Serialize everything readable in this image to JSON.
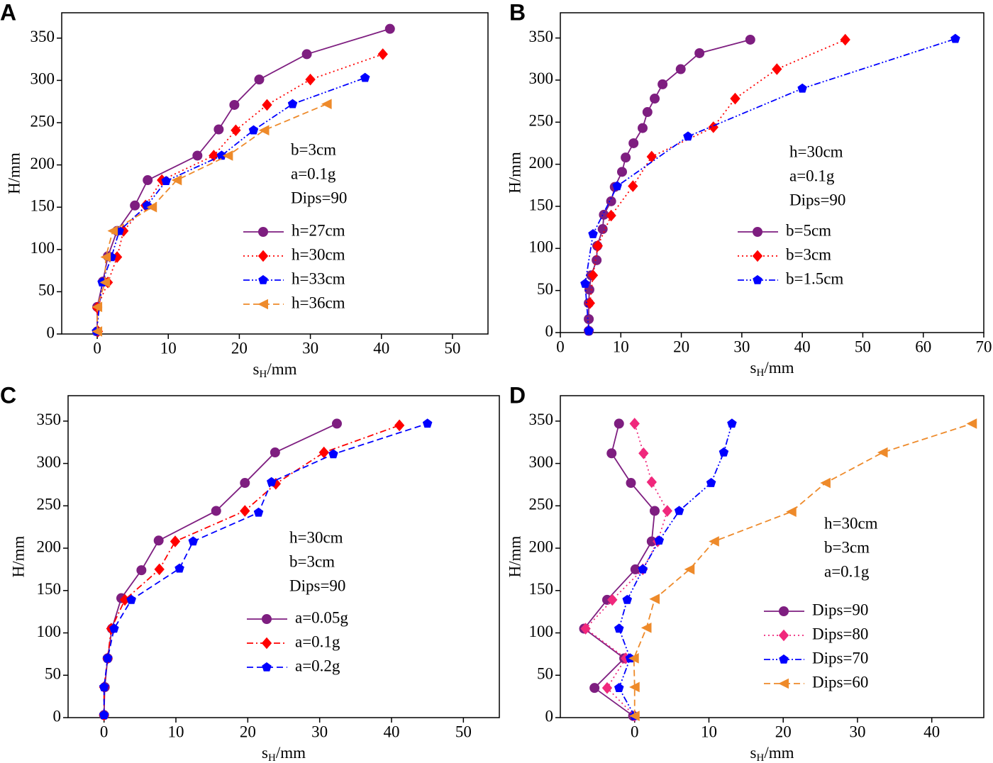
{
  "chart_data": [
    {
      "type": "line",
      "panel_label": "A",
      "xlabel": [
        "s",
        "H",
        "/mm"
      ],
      "ylabel": "H/mm",
      "xlim": [
        -5,
        55
      ],
      "ylim": [
        0,
        380
      ],
      "xticks": [
        0,
        10,
        20,
        30,
        40,
        50
      ],
      "yticks": [
        0,
        50,
        100,
        150,
        200,
        250,
        300,
        350
      ],
      "annotations": [
        "b=3cm",
        "a=0.1g",
        "Dips=90"
      ],
      "legend": "right",
      "series": [
        {
          "name": "h=27cm",
          "color": "#7e1e80",
          "marker": "circle",
          "linestyle": "solid",
          "x": [
            0,
            0,
            0.8,
            1.5,
            2.8,
            5.3,
            7.1,
            14.1,
            17.1,
            19.3,
            22.8,
            29.5,
            41.2
          ],
          "values": [
            3,
            32,
            62,
            92,
            122,
            152,
            182,
            211,
            242,
            271,
            301,
            331,
            361
          ]
        },
        {
          "name": "h=30cm",
          "color": "#ff0000",
          "marker": "diamond",
          "linestyle": "dotted",
          "x": [
            0.1,
            0,
            1.5,
            2.8,
            3.7,
            6.8,
            9.1,
            16.4,
            19.5,
            23.9,
            30,
            40.2
          ],
          "values": [
            3,
            31,
            61,
            91,
            122,
            152,
            182,
            211,
            241,
            271,
            301,
            331
          ]
        },
        {
          "name": "h=33cm",
          "color": "#0000ff",
          "marker": "pentagon",
          "linestyle": "dashdotdot",
          "x": [
            -0.1,
            0.7,
            2,
            3.1,
            7,
            9.7,
            17.5,
            22,
            27.5,
            37.7
          ],
          "values": [
            3,
            61,
            91,
            122,
            152,
            181,
            211,
            241,
            272,
            303
          ]
        },
        {
          "name": "h=36cm",
          "color": "#ee8a2a",
          "marker": "triangle-left",
          "linestyle": "dashed",
          "x": [
            0,
            0,
            1.1,
            1.2,
            2.2,
            7.7,
            11.2,
            18.4,
            23.5,
            32.3
          ],
          "values": [
            3,
            32,
            61,
            91,
            122,
            150,
            182,
            211,
            241,
            272
          ]
        }
      ]
    },
    {
      "type": "line",
      "panel_label": "B",
      "xlabel": [
        "s",
        "H",
        "/mm"
      ],
      "ylabel": "H/mm",
      "xlim": [
        0,
        70
      ],
      "ylim": [
        0,
        380
      ],
      "xticks": [
        0,
        10,
        20,
        30,
        40,
        50,
        60,
        70
      ],
      "yticks": [
        0,
        50,
        100,
        150,
        200,
        250,
        300,
        350
      ],
      "annotations": [
        "h=30cm",
        "a=0.1g",
        "Dips=90"
      ],
      "legend": "right",
      "series": [
        {
          "name": "b=5cm",
          "color": "#7e1e80",
          "marker": "circle",
          "linestyle": "solid",
          "x": [
            4.7,
            4.7,
            4.7,
            4.8,
            5.1,
            6.0,
            6.1,
            7.0,
            7.2,
            8.4,
            9.0,
            10.2,
            10.8,
            12.1,
            13.6,
            14.4,
            15.6,
            16.9,
            19.9,
            23,
            31.4
          ],
          "values": [
            2,
            16,
            35,
            51,
            68,
            86,
            103,
            123,
            140,
            156,
            173,
            191,
            208,
            225,
            243,
            262,
            278,
            295,
            313,
            332,
            348
          ]
        },
        {
          "name": "b=3cm",
          "color": "#ff0000",
          "marker": "diamond",
          "linestyle": "dotted",
          "x": [
            4.9,
            5.4,
            6.2,
            8.4,
            12,
            15.1,
            25.3,
            28.9,
            35.8,
            47.1
          ],
          "values": [
            35,
            68,
            103,
            139,
            174,
            209,
            244,
            278,
            313,
            348
          ]
        },
        {
          "name": "b=1.5cm",
          "color": "#0000ff",
          "marker": "pentagon",
          "linestyle": "dashdotdot",
          "x": [
            4.7,
            4.1,
            5.4,
            9.4,
            21.1,
            40,
            65.3
          ],
          "values": [
            2,
            58,
            117,
            174,
            233,
            290,
            349
          ]
        }
      ]
    },
    {
      "type": "line",
      "panel_label": "C",
      "xlabel": [
        "s",
        "H",
        "/mm"
      ],
      "ylabel": "H/mm",
      "xlim": [
        -5,
        55
      ],
      "ylim": [
        0,
        380
      ],
      "xticks": [
        0,
        10,
        20,
        30,
        40,
        50
      ],
      "yticks": [
        0,
        50,
        100,
        150,
        200,
        250,
        300,
        350
      ],
      "annotations": [
        "h=30cm",
        "b=3cm",
        "Dips=90"
      ],
      "legend": "right",
      "series": [
        {
          "name": "a=0.05g",
          "color": "#7e1e80",
          "marker": "circle",
          "linestyle": "solid",
          "x": [
            0,
            0.1,
            0.5,
            1.1,
            2.4,
            5.2,
            7.6,
            15.6,
            19.6,
            23.8,
            32.4
          ],
          "values": [
            3,
            36,
            70,
            105,
            141,
            174,
            209,
            244,
            277,
            313,
            347
          ]
        },
        {
          "name": "a=0.1g",
          "color": "#ff0000",
          "marker": "diamond",
          "linestyle": "dashdot",
          "x": [
            0,
            0,
            0.5,
            1,
            2.9,
            7.7,
            9.9,
            19.6,
            23.9,
            30.6,
            41.1
          ],
          "values": [
            3,
            36,
            70,
            105,
            139,
            175,
            208,
            244,
            276,
            313,
            345
          ]
        },
        {
          "name": "a=0.2g",
          "color": "#0000ff",
          "marker": "pentagon",
          "linestyle": "dashed",
          "x": [
            0,
            0,
            0.5,
            1.4,
            3.8,
            10.5,
            12.4,
            21.5,
            23.3,
            31.9,
            45
          ],
          "values": [
            3,
            36,
            70,
            105,
            139,
            176,
            208,
            242,
            278,
            311,
            347
          ]
        }
      ]
    },
    {
      "type": "line",
      "panel_label": "D",
      "xlabel": [
        "s",
        "H",
        "/mm"
      ],
      "ylabel": "H/mm",
      "xlim": [
        -10,
        47
      ],
      "ylim": [
        0,
        380
      ],
      "xticks": [
        0,
        10,
        20,
        30,
        40
      ],
      "yticks": [
        0,
        50,
        100,
        150,
        200,
        250,
        300,
        350
      ],
      "annotations": [
        "h=30cm",
        "b=3cm",
        "a=0.1g"
      ],
      "legend": "right",
      "series": [
        {
          "name": "Dips=90",
          "color": "#7e1e80",
          "marker": "circle",
          "linestyle": "solid",
          "x": [
            -0.2,
            -5.4,
            -1.4,
            -6.8,
            -3.7,
            0.1,
            2.3,
            2.7,
            -0.5,
            -3.1,
            -2.1
          ],
          "values": [
            2,
            35,
            70,
            105,
            139,
            175,
            208,
            244,
            277,
            312,
            347
          ]
        },
        {
          "name": "Dips=80",
          "color": "#f0287c",
          "marker": "diamond",
          "linestyle": "dotted",
          "x": [
            0,
            -3.7,
            -1.2,
            -6.6,
            -3,
            1.1,
            3.1,
            4.4,
            2.3,
            1.2,
            0
          ],
          "values": [
            2,
            35,
            70,
            105,
            139,
            175,
            208,
            244,
            278,
            312,
            347
          ]
        },
        {
          "name": "Dips=70",
          "color": "#0000ff",
          "marker": "pentagon",
          "linestyle": "dashdotdot",
          "x": [
            0,
            -2.1,
            -0.6,
            -2.1,
            -1,
            1.1,
            3.3,
            6,
            10.3,
            12,
            13.1
          ],
          "values": [
            2,
            35,
            70,
            105,
            139,
            175,
            209,
            244,
            277,
            313,
            347
          ]
        },
        {
          "name": "Dips=60",
          "color": "#ee8a2a",
          "marker": "triangle-left",
          "linestyle": "dashed",
          "x": [
            0,
            0,
            -0.1,
            1.6,
            2.7,
            7.4,
            10.7,
            21.1,
            25.7,
            33.4,
            45.4
          ],
          "values": [
            2,
            36,
            70,
            106,
            140,
            175,
            208,
            243,
            277,
            313,
            347
          ]
        }
      ]
    }
  ]
}
